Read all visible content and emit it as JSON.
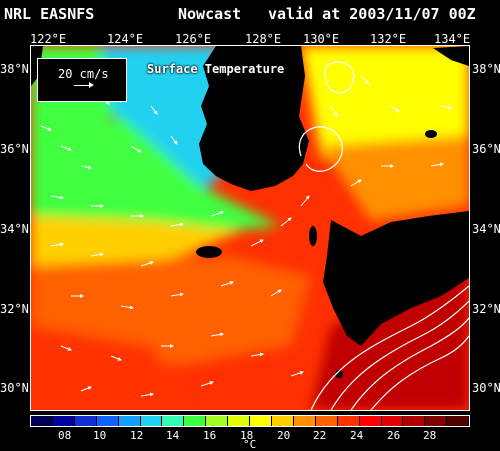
{
  "header": {
    "model": "NRL EASNFS",
    "product": "Nowcast",
    "valid": "valid at 2003/11/07 00Z"
  },
  "map": {
    "title": "Surface Temperature",
    "legend_text": "20 cm/s",
    "lon_labels": [
      "122°E",
      "124°E",
      "126°E",
      "128°E",
      "130°E",
      "132°E",
      "134°E"
    ],
    "lat_labels": [
      "38°N",
      "36°N",
      "34°N",
      "32°N",
      "30°N"
    ]
  },
  "colorbar": {
    "ticks": [
      "08",
      "10",
      "12",
      "14",
      "16",
      "18",
      "20",
      "22",
      "24",
      "26",
      "28"
    ],
    "unit": "°C",
    "colors": [
      "#000050",
      "#0000a0",
      "#1030d0",
      "#1060ff",
      "#10a0ff",
      "#20d0f0",
      "#30ffb0",
      "#40ff40",
      "#a0ff20",
      "#e0ff00",
      "#ffff00",
      "#ffd000",
      "#ff9000",
      "#ff6000",
      "#ff3000",
      "#ff0000",
      "#e00000",
      "#b00000",
      "#800000",
      "#500000"
    ]
  }
}
